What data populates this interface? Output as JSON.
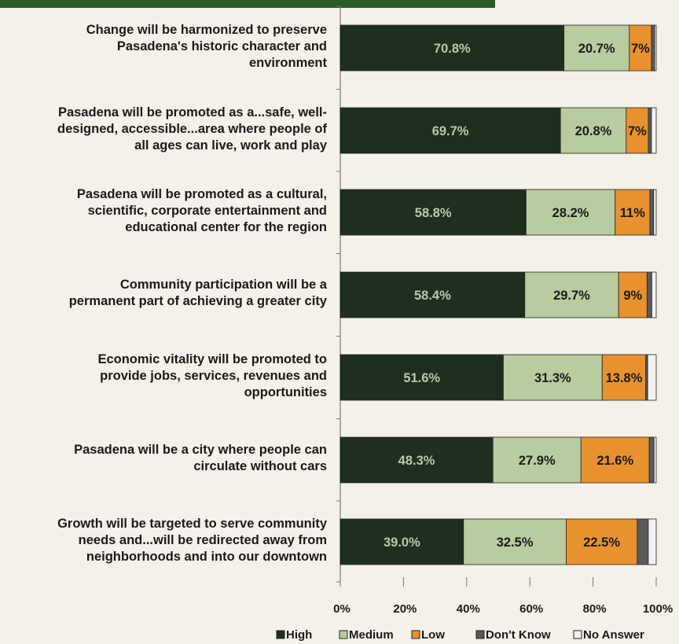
{
  "chart_data": {
    "type": "bar",
    "orientation": "horizontal",
    "stacked": true,
    "categories": [
      "Change will be harmonized to preserve Pasadena's historic character and environment",
      "Pasadena will be promoted as a...safe, well-designed, accessible...area where people of all ages can live, work and play",
      "Pasadena will be promoted as a cultural, scientific, corporate entertainment and educational center for the region",
      "Community participation will be a permanent part of achieving a greater city",
      "Economic vitality will be promoted to provide jobs, services, revenues and opportunities",
      "Pasadena will be a city where people can circulate without cars",
      "Growth will be targeted to serve community needs and...will be redirected away from neighborhoods and into our downtown"
    ],
    "category_lines": [
      [
        "Change will be harmonized to preserve",
        "Pasadena's historic character and",
        "environment"
      ],
      [
        "Pasadena will be promoted as a...safe, well-",
        "designed, accessible...area where people of",
        "all ages can live, work and play"
      ],
      [
        "Pasadena will be promoted as a cultural,",
        "scientific, corporate entertainment and",
        "educational center for the region"
      ],
      [
        "Community participation will be a",
        "permanent part of achieving a greater city"
      ],
      [
        "Economic vitality will be promoted to",
        "provide jobs, services, revenues and",
        "opportunities"
      ],
      [
        "Pasadena will be a city where people can",
        "circulate without cars"
      ],
      [
        "Growth will be targeted to serve community",
        "needs and...will be redirected away from",
        "neighborhoods and into our downtown"
      ]
    ],
    "series": [
      {
        "name": "High",
        "color": "#1f2f1f",
        "label_color": "#b9c9b0",
        "values": [
          70.8,
          69.7,
          58.8,
          58.4,
          51.6,
          48.3,
          39.0
        ],
        "labels": [
          "70.8%",
          "69.7%",
          "58.8%",
          "58.4%",
          "51.6%",
          "48.3%",
          "39.0%"
        ]
      },
      {
        "name": "Medium",
        "color": "#b9cc9f",
        "label_color": "#1a1a1a",
        "values": [
          20.7,
          20.8,
          28.2,
          29.7,
          31.3,
          27.9,
          32.5
        ],
        "labels": [
          "20.7%",
          "20.8%",
          "28.2%",
          "29.7%",
          "31.3%",
          "27.9%",
          "32.5%"
        ]
      },
      {
        "name": "Low",
        "color": "#e8922f",
        "label_color": "#1a1a1a",
        "values": [
          7,
          7,
          11,
          9,
          13.8,
          21.6,
          22.5
        ],
        "labels": [
          "7%",
          "7%",
          "11%",
          "9%",
          "13.8%",
          "21.6%",
          "22.5%"
        ]
      },
      {
        "name": "Don't Know",
        "color": "#5a5a5a",
        "label_color": "#ffffff",
        "values": [
          1.0,
          1.0,
          1.2,
          1.5,
          0.6,
          1.5,
          3.5
        ],
        "labels": [
          "",
          "",
          "",
          "",
          "",
          "",
          ""
        ]
      },
      {
        "name": "No Answer",
        "color": "#f2f2f2",
        "label_color": "#1a1a1a",
        "values": [
          0.5,
          1.5,
          0.8,
          1.4,
          2.7,
          0.7,
          2.5
        ],
        "labels": [
          "",
          "",
          "",
          "",
          "",
          "",
          ""
        ]
      }
    ],
    "x_ticks": [
      "0%",
      "20%",
      "40%",
      "60%",
      "80%",
      "100%"
    ],
    "xlim": [
      0,
      100
    ],
    "grid": false,
    "legend_position": "bottom",
    "header_bar_color": "#2b5d26"
  }
}
